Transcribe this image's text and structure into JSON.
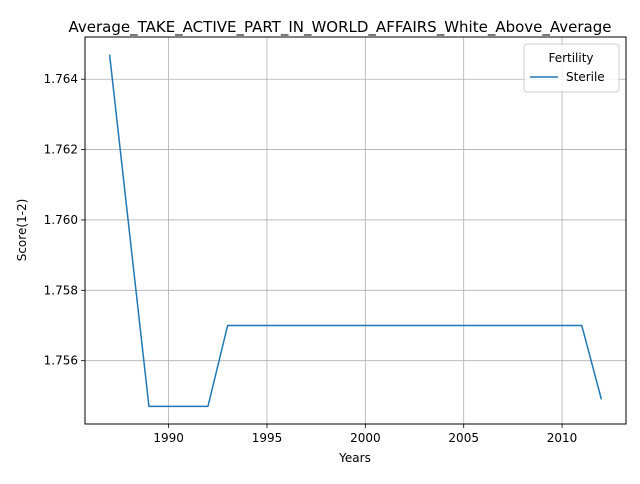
{
  "chart_data": {
    "type": "line",
    "title": "Average_TAKE_ACTIVE_PART_IN_WORLD_AFFAIRS_White_Above_Average",
    "xlabel": "Years",
    "ylabel": "Score(1-2)",
    "xlim": [
      1985.75,
      2013.25
    ],
    "ylim": [
      1754.2,
      1765.2
    ],
    "y_scale": 0.001,
    "x_ticks": [
      1990,
      1995,
      2000,
      2005,
      2010
    ],
    "x_tick_labels": [
      "1990",
      "1995",
      "2000",
      "2005",
      "2010"
    ],
    "y_ticks": [
      1756,
      1758,
      1760,
      1762,
      1764
    ],
    "y_tick_labels": [
      "1.756",
      "1.758",
      "1.760",
      "1.762",
      "1.764"
    ],
    "grid": true,
    "legend": {
      "title": "Fertility",
      "placement": "top-right"
    },
    "series": [
      {
        "name": "Sterile",
        "color": "#1f77b4",
        "x": [
          1987,
          1989,
          1990,
          1991,
          1992,
          1993,
          1994,
          1995,
          1996,
          1997,
          1998,
          1999,
          2000,
          2001,
          2002,
          2003,
          2004,
          2005,
          2006,
          2007,
          2008,
          2009,
          2010,
          2011,
          2012
        ],
        "y": [
          1764.7,
          1754.7,
          1754.7,
          1754.7,
          1754.7,
          1757.0,
          1757.0,
          1757.0,
          1757.0,
          1757.0,
          1757.0,
          1757.0,
          1757.0,
          1757.0,
          1757.0,
          1757.0,
          1757.0,
          1757.0,
          1757.0,
          1757.0,
          1757.0,
          1757.0,
          1757.0,
          1757.0,
          1754.9
        ]
      }
    ]
  }
}
